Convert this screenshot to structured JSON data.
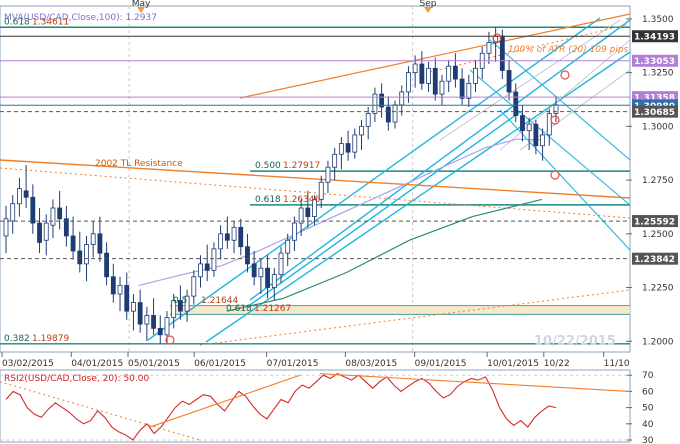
{
  "chart_data": [
    {
      "type": "candlestick",
      "title": "",
      "indicator_label": "MVA(USD/CAD,Close,100): 1.2937",
      "xlabel": "",
      "ylabel": "",
      "ylim": [
        1.195,
        1.356
      ],
      "y_ticks": [
        1.2,
        1.225,
        1.25,
        1.275,
        1.3,
        1.325,
        1.35
      ],
      "y_tick_labels": [
        "1.2000",
        "1.2250",
        "1.2500",
        "1.2750",
        "1.3000",
        "1.3250",
        "1.3500"
      ],
      "x_tick_labels": [
        "03/02/2015",
        "04/01/2015",
        "05/01/2015",
        "06/01/2015",
        "07/01/2015",
        "08/03/2015",
        "09/01/2015",
        "10/01/2015",
        "10/22",
        "11/10"
      ],
      "top_month_labels": [
        "May",
        "Sep"
      ],
      "date_stamp": "10/22/2015",
      "price_markers": [
        {
          "label": "1.34193",
          "value": 1.34193,
          "color": "#333333"
        },
        {
          "label": "1.33053",
          "value": 1.33053,
          "color": "#b07fd8"
        },
        {
          "label": "1.31358",
          "value": 1.31358,
          "color": "#b07fd8"
        },
        {
          "label": "1.30980",
          "value": 1.3098,
          "color": "#2f6fa8"
        },
        {
          "label": "1.30685",
          "value": 1.30685,
          "color": "#555555"
        },
        {
          "label": "1.25592",
          "value": 1.25592,
          "color": "#555555"
        },
        {
          "label": "1.23842",
          "value": 1.23842,
          "color": "#555555"
        }
      ],
      "annotations": [
        {
          "text": "0.618",
          "value_text": "1.34611",
          "value": 1.34611
        },
        {
          "text": "0.500",
          "value_text": "1.27917",
          "value": 1.27917
        },
        {
          "text": "0.618",
          "value_text": "1.26346",
          "value": 1.26346
        },
        {
          "text": "0.5",
          "value_text": "1.21644",
          "value": 1.21644
        },
        {
          "text": "0.618",
          "value_text": "1.21267",
          "value": 1.21267
        },
        {
          "text": "0.382",
          "value_text": "1.19879",
          "value": 1.19879
        },
        {
          "text": "2002 TL Resistance"
        },
        {
          "text": "100% of ATR (20) 109 pips"
        }
      ],
      "moving_average_100": [
        {
          "x": 0.22,
          "y": 1.226
        },
        {
          "x": 0.29,
          "y": 1.231
        },
        {
          "x": 0.35,
          "y": 1.235
        },
        {
          "x": 0.41,
          "y": 1.242
        },
        {
          "x": 0.47,
          "y": 1.25
        },
        {
          "x": 0.53,
          "y": 1.258
        },
        {
          "x": 0.59,
          "y": 1.266
        },
        {
          "x": 0.65,
          "y": 1.274
        },
        {
          "x": 0.71,
          "y": 1.282
        },
        {
          "x": 0.77,
          "y": 1.29
        },
        {
          "x": 0.82,
          "y": 1.294
        },
        {
          "x": 0.86,
          "y": 1.2937
        }
      ],
      "moving_average_200": [
        {
          "x": 0.36,
          "y": 1.214
        },
        {
          "x": 0.45,
          "y": 1.22
        },
        {
          "x": 0.55,
          "y": 1.232
        },
        {
          "x": 0.65,
          "y": 1.247
        },
        {
          "x": 0.75,
          "y": 1.258
        },
        {
          "x": 0.86,
          "y": 1.266
        }
      ],
      "candles": [
        {
          "o": 1.249,
          "h": 1.263,
          "l": 1.241,
          "c": 1.257
        },
        {
          "o": 1.256,
          "h": 1.268,
          "l": 1.25,
          "c": 1.264
        },
        {
          "o": 1.264,
          "h": 1.276,
          "l": 1.258,
          "c": 1.271
        },
        {
          "o": 1.27,
          "h": 1.282,
          "l": 1.262,
          "c": 1.267
        },
        {
          "o": 1.267,
          "h": 1.273,
          "l": 1.25,
          "c": 1.255
        },
        {
          "o": 1.255,
          "h": 1.262,
          "l": 1.241,
          "c": 1.246
        },
        {
          "o": 1.247,
          "h": 1.259,
          "l": 1.24,
          "c": 1.255
        },
        {
          "o": 1.254,
          "h": 1.266,
          "l": 1.248,
          "c": 1.262
        },
        {
          "o": 1.262,
          "h": 1.27,
          "l": 1.252,
          "c": 1.257
        },
        {
          "o": 1.257,
          "h": 1.263,
          "l": 1.244,
          "c": 1.249
        },
        {
          "o": 1.249,
          "h": 1.258,
          "l": 1.238,
          "c": 1.242
        },
        {
          "o": 1.242,
          "h": 1.251,
          "l": 1.232,
          "c": 1.236
        },
        {
          "o": 1.236,
          "h": 1.249,
          "l": 1.228,
          "c": 1.245
        },
        {
          "o": 1.245,
          "h": 1.256,
          "l": 1.239,
          "c": 1.25
        },
        {
          "o": 1.25,
          "h": 1.258,
          "l": 1.237,
          "c": 1.241
        },
        {
          "o": 1.241,
          "h": 1.246,
          "l": 1.226,
          "c": 1.23
        },
        {
          "o": 1.23,
          "h": 1.236,
          "l": 1.218,
          "c": 1.222
        },
        {
          "o": 1.222,
          "h": 1.23,
          "l": 1.214,
          "c": 1.226
        },
        {
          "o": 1.226,
          "h": 1.232,
          "l": 1.21,
          "c": 1.214
        },
        {
          "o": 1.214,
          "h": 1.222,
          "l": 1.205,
          "c": 1.218
        },
        {
          "o": 1.218,
          "h": 1.224,
          "l": 1.204,
          "c": 1.208
        },
        {
          "o": 1.208,
          "h": 1.216,
          "l": 1.2,
          "c": 1.212
        },
        {
          "o": 1.212,
          "h": 1.22,
          "l": 1.203,
          "c": 1.206
        },
        {
          "o": 1.206,
          "h": 1.212,
          "l": 1.199,
          "c": 1.203
        },
        {
          "o": 1.203,
          "h": 1.214,
          "l": 1.199,
          "c": 1.211
        },
        {
          "o": 1.211,
          "h": 1.222,
          "l": 1.206,
          "c": 1.219
        },
        {
          "o": 1.219,
          "h": 1.226,
          "l": 1.21,
          "c": 1.214
        },
        {
          "o": 1.214,
          "h": 1.224,
          "l": 1.209,
          "c": 1.221
        },
        {
          "o": 1.221,
          "h": 1.233,
          "l": 1.217,
          "c": 1.23
        },
        {
          "o": 1.23,
          "h": 1.24,
          "l": 1.225,
          "c": 1.236
        },
        {
          "o": 1.236,
          "h": 1.245,
          "l": 1.228,
          "c": 1.233
        },
        {
          "o": 1.233,
          "h": 1.246,
          "l": 1.23,
          "c": 1.243
        },
        {
          "o": 1.243,
          "h": 1.254,
          "l": 1.238,
          "c": 1.25
        },
        {
          "o": 1.25,
          "h": 1.258,
          "l": 1.243,
          "c": 1.247
        },
        {
          "o": 1.247,
          "h": 1.256,
          "l": 1.241,
          "c": 1.253
        },
        {
          "o": 1.253,
          "h": 1.257,
          "l": 1.24,
          "c": 1.244
        },
        {
          "o": 1.244,
          "h": 1.25,
          "l": 1.232,
          "c": 1.236
        },
        {
          "o": 1.236,
          "h": 1.242,
          "l": 1.226,
          "c": 1.23
        },
        {
          "o": 1.23,
          "h": 1.238,
          "l": 1.222,
          "c": 1.234
        },
        {
          "o": 1.234,
          "h": 1.24,
          "l": 1.22,
          "c": 1.225
        },
        {
          "o": 1.225,
          "h": 1.234,
          "l": 1.219,
          "c": 1.231
        },
        {
          "o": 1.231,
          "h": 1.244,
          "l": 1.227,
          "c": 1.241
        },
        {
          "o": 1.241,
          "h": 1.25,
          "l": 1.235,
          "c": 1.247
        },
        {
          "o": 1.247,
          "h": 1.258,
          "l": 1.242,
          "c": 1.255
        },
        {
          "o": 1.255,
          "h": 1.266,
          "l": 1.249,
          "c": 1.262
        },
        {
          "o": 1.262,
          "h": 1.27,
          "l": 1.253,
          "c": 1.258
        },
        {
          "o": 1.258,
          "h": 1.268,
          "l": 1.254,
          "c": 1.266
        },
        {
          "o": 1.266,
          "h": 1.277,
          "l": 1.262,
          "c": 1.274
        },
        {
          "o": 1.274,
          "h": 1.284,
          "l": 1.269,
          "c": 1.281
        },
        {
          "o": 1.281,
          "h": 1.29,
          "l": 1.275,
          "c": 1.287
        },
        {
          "o": 1.287,
          "h": 1.295,
          "l": 1.28,
          "c": 1.292
        },
        {
          "o": 1.292,
          "h": 1.298,
          "l": 1.284,
          "c": 1.288
        },
        {
          "o": 1.288,
          "h": 1.299,
          "l": 1.285,
          "c": 1.296
        },
        {
          "o": 1.296,
          "h": 1.303,
          "l": 1.289,
          "c": 1.3
        },
        {
          "o": 1.3,
          "h": 1.309,
          "l": 1.294,
          "c": 1.306
        },
        {
          "o": 1.306,
          "h": 1.318,
          "l": 1.302,
          "c": 1.315
        },
        {
          "o": 1.315,
          "h": 1.32,
          "l": 1.304,
          "c": 1.309
        },
        {
          "o": 1.309,
          "h": 1.314,
          "l": 1.298,
          "c": 1.302
        },
        {
          "o": 1.302,
          "h": 1.312,
          "l": 1.299,
          "c": 1.31
        },
        {
          "o": 1.31,
          "h": 1.319,
          "l": 1.305,
          "c": 1.316
        },
        {
          "o": 1.316,
          "h": 1.328,
          "l": 1.311,
          "c": 1.325
        },
        {
          "o": 1.325,
          "h": 1.333,
          "l": 1.318,
          "c": 1.329
        },
        {
          "o": 1.329,
          "h": 1.335,
          "l": 1.317,
          "c": 1.32
        },
        {
          "o": 1.32,
          "h": 1.33,
          "l": 1.316,
          "c": 1.327
        },
        {
          "o": 1.327,
          "h": 1.332,
          "l": 1.312,
          "c": 1.315
        },
        {
          "o": 1.315,
          "h": 1.324,
          "l": 1.31,
          "c": 1.321
        },
        {
          "o": 1.321,
          "h": 1.331,
          "l": 1.316,
          "c": 1.328
        },
        {
          "o": 1.328,
          "h": 1.334,
          "l": 1.318,
          "c": 1.322
        },
        {
          "o": 1.322,
          "h": 1.327,
          "l": 1.31,
          "c": 1.313
        },
        {
          "o": 1.313,
          "h": 1.324,
          "l": 1.309,
          "c": 1.32
        },
        {
          "o": 1.32,
          "h": 1.331,
          "l": 1.316,
          "c": 1.327
        },
        {
          "o": 1.327,
          "h": 1.337,
          "l": 1.322,
          "c": 1.334
        },
        {
          "o": 1.334,
          "h": 1.344,
          "l": 1.329,
          "c": 1.339
        },
        {
          "o": 1.339,
          "h": 1.346,
          "l": 1.33,
          "c": 1.342
        },
        {
          "o": 1.342,
          "h": 1.345,
          "l": 1.322,
          "c": 1.326
        },
        {
          "o": 1.326,
          "h": 1.331,
          "l": 1.312,
          "c": 1.316
        },
        {
          "o": 1.316,
          "h": 1.32,
          "l": 1.302,
          "c": 1.305
        },
        {
          "o": 1.305,
          "h": 1.31,
          "l": 1.293,
          "c": 1.298
        },
        {
          "o": 1.298,
          "h": 1.304,
          "l": 1.289,
          "c": 1.301
        },
        {
          "o": 1.301,
          "h": 1.303,
          "l": 1.287,
          "c": 1.291
        },
        {
          "o": 1.291,
          "h": 1.299,
          "l": 1.284,
          "c": 1.296
        },
        {
          "o": 1.296,
          "h": 1.308,
          "l": 1.291,
          "c": 1.306
        },
        {
          "o": 1.306,
          "h": 1.314,
          "l": 1.302,
          "c": 1.31
        }
      ]
    },
    {
      "type": "line",
      "title": "RSI2(USD/CAD,Close, 20): 50.00",
      "ylim": [
        30,
        72
      ],
      "y_tick_labels": [
        "70",
        "60",
        "50",
        "40",
        "30"
      ],
      "y_ticks": [
        70,
        60,
        50,
        40,
        30
      ],
      "series": [
        {
          "values": [
            55,
            60,
            58,
            50,
            46,
            44,
            49,
            53,
            50,
            47,
            43,
            40,
            42,
            48,
            44,
            38,
            35,
            33,
            30,
            36,
            40,
            34,
            38,
            44,
            50,
            54,
            52,
            55,
            58,
            57,
            52,
            48,
            54,
            60,
            57,
            51,
            46,
            43,
            49,
            55,
            53,
            60,
            64,
            62,
            66,
            70,
            68,
            71,
            69,
            67,
            70,
            66,
            62,
            66,
            69,
            64,
            60,
            63,
            66,
            68,
            65,
            60,
            56,
            58,
            63,
            66,
            68,
            67,
            69,
            61,
            50,
            43,
            39,
            42,
            38,
            44,
            48,
            51,
            50
          ]
        }
      ]
    }
  ]
}
